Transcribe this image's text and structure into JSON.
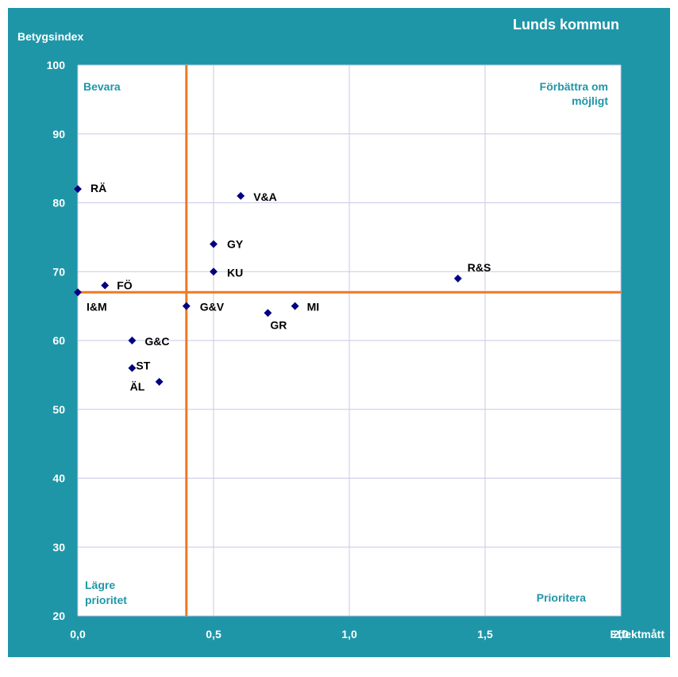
{
  "chart_data": {
    "type": "scatter",
    "title": "Lunds kommun",
    "xlabel": "Effektmått",
    "ylabel": "Betygsindex",
    "xlim": [
      0,
      2
    ],
    "ylim": [
      20,
      100
    ],
    "x_ticks": [
      "0,0",
      "0,5",
      "1,0",
      "1,5",
      "2,0"
    ],
    "y_ticks": [
      "20",
      "30",
      "40",
      "50",
      "60",
      "70",
      "80",
      "90",
      "100"
    ],
    "grid": true,
    "reference_lines": {
      "x": 0.4,
      "y": 67
    },
    "quadrant_labels": {
      "top_left": "Bevara",
      "top_right_line1": "Förbättra om",
      "top_right_line2": "möjligt",
      "bottom_left_line1": "Lägre",
      "bottom_left_line2": "prioritet",
      "bottom_right": "Prioritera"
    },
    "points": [
      {
        "label": "RÄ",
        "x": 0.0,
        "y": 82
      },
      {
        "label": "V&A",
        "x": 0.6,
        "y": 81
      },
      {
        "label": "GY",
        "x": 0.5,
        "y": 74
      },
      {
        "label": "KU",
        "x": 0.5,
        "y": 70
      },
      {
        "label": "R&S",
        "x": 1.4,
        "y": 69
      },
      {
        "label": "FÖ",
        "x": 0.1,
        "y": 68
      },
      {
        "label": "I&M",
        "x": 0.0,
        "y": 67
      },
      {
        "label": "G&V",
        "x": 0.4,
        "y": 65
      },
      {
        "label": "MI",
        "x": 0.8,
        "y": 65
      },
      {
        "label": "GR",
        "x": 0.7,
        "y": 64
      },
      {
        "label": "G&C",
        "x": 0.2,
        "y": 60
      },
      {
        "label": "ST",
        "x": 0.2,
        "y": 56
      },
      {
        "label": "ÄL",
        "x": 0.3,
        "y": 54
      }
    ],
    "colors": {
      "frame": "#1f96a8",
      "plot_bg": "#ffffff",
      "grid": "#c8c8e6",
      "reference": "#f07820",
      "marker": "#000080",
      "quadrant_text": "#1f96a8",
      "frame_text": "#ffffff",
      "tick_text": "#ffffff",
      "point_text": "#000000"
    }
  }
}
